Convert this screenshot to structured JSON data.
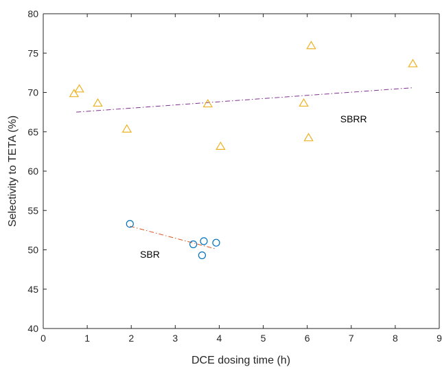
{
  "chart_data": {
    "type": "scatter",
    "title": "",
    "xlabel": "DCE dosing time (h)",
    "ylabel": "Selectivity to TETA (%)",
    "xlim": [
      0,
      9
    ],
    "ylim": [
      40,
      80
    ],
    "xticks": [
      0,
      1,
      2,
      3,
      4,
      5,
      6,
      7,
      8,
      9
    ],
    "yticks": [
      40,
      45,
      50,
      55,
      60,
      65,
      70,
      75,
      80
    ],
    "grid": false,
    "legend": "none",
    "series": [
      {
        "name": "SBRR",
        "marker": "triangle",
        "color": "#EDB120",
        "points": [
          [
            0.7,
            69.8
          ],
          [
            0.82,
            70.4
          ],
          [
            1.24,
            68.6
          ],
          [
            1.9,
            65.3
          ],
          [
            3.74,
            68.5
          ],
          [
            4.03,
            63.1
          ],
          [
            5.92,
            68.6
          ],
          [
            6.03,
            64.2
          ],
          [
            6.09,
            75.9
          ],
          [
            8.4,
            73.6
          ]
        ],
        "trend": {
          "x1": 0.75,
          "y1": 67.5,
          "x2": 8.4,
          "y2": 70.6,
          "color": "#7E2F8E",
          "dash": "dashdot"
        }
      },
      {
        "name": "SBR",
        "marker": "circle",
        "color": "#0072BD",
        "points": [
          [
            1.97,
            53.3
          ],
          [
            3.41,
            50.7
          ],
          [
            3.61,
            49.3
          ],
          [
            3.65,
            51.1
          ],
          [
            3.93,
            50.9
          ]
        ],
        "trend": {
          "x1": 1.97,
          "y1": 53.0,
          "x2": 3.93,
          "y2": 50.1,
          "color": "#D95319",
          "dash": "dashdot"
        }
      }
    ],
    "annotations": [
      {
        "text": "SBRR",
        "x": 6.75,
        "y": 66.2
      },
      {
        "text": "SBR",
        "x": 2.2,
        "y": 49.0
      }
    ]
  }
}
